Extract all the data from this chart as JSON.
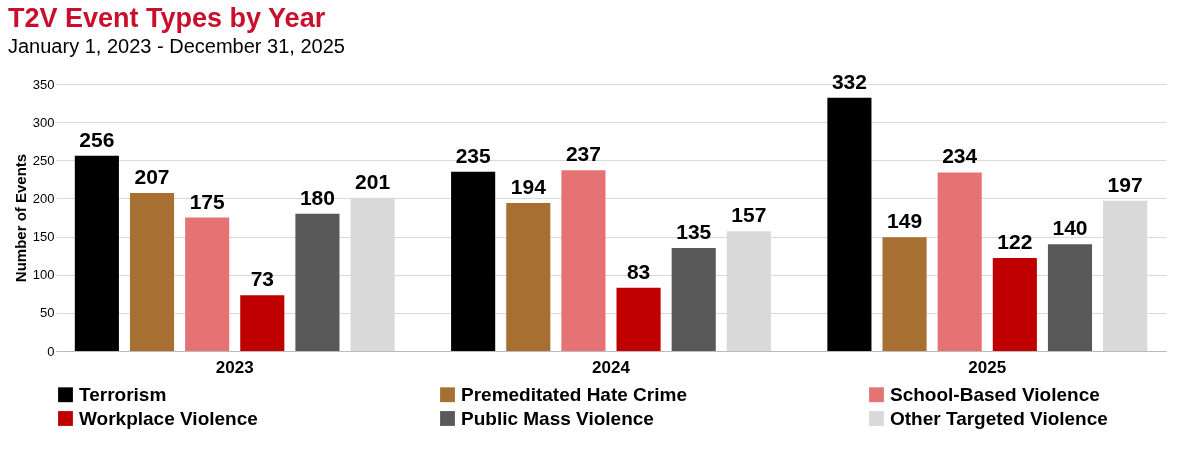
{
  "chart_data": {
    "type": "bar",
    "title": "T2V Event Types by Year",
    "subtitle": "January 1, 2023 - December 31, 2025",
    "ylabel": "Number of Events",
    "categories": [
      "2023",
      "2024",
      "2025"
    ],
    "series": [
      {
        "name": "Terrorism",
        "color": "#000000",
        "values": [
          256,
          235,
          332
        ]
      },
      {
        "name": "Premeditated Hate Crime",
        "color": "#a86f32",
        "values": [
          207,
          194,
          149
        ]
      },
      {
        "name": "School-Based Violence",
        "color": "#e57373",
        "values": [
          175,
          237,
          234
        ]
      },
      {
        "name": "Workplace Violence",
        "color": "#c00000",
        "values": [
          73,
          83,
          122
        ]
      },
      {
        "name": "Public Mass Violence",
        "color": "#595959",
        "values": [
          180,
          135,
          140
        ]
      },
      {
        "name": "Other Targeted Violence",
        "color": "#d9d9d9",
        "values": [
          201,
          157,
          197
        ]
      }
    ],
    "ylim": [
      0,
      350
    ],
    "yticks": [
      0,
      50,
      100,
      150,
      200,
      250,
      300,
      350
    ],
    "grid": "y",
    "legend": "bottom",
    "data_labels": true
  }
}
